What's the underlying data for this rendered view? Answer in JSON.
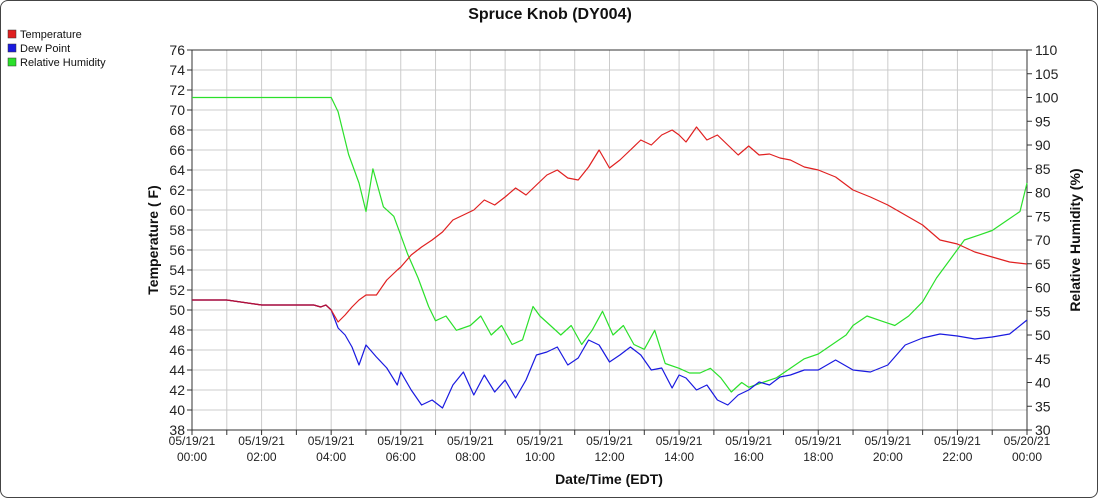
{
  "chart_data": {
    "type": "line",
    "title": "Spruce Knob (DY004)",
    "xlabel": "Date/Time (EDT)",
    "ylabel_left": "Temperature ( F)",
    "ylabel_right": "Relative Humidity (%)",
    "ylim_left": [
      38,
      76
    ],
    "ylim_right": [
      30,
      110
    ],
    "xlim_hours": [
      0,
      24
    ],
    "x_ticks": [
      {
        "date": "05/19/21",
        "time": "00:00"
      },
      {
        "date": "05/19/21",
        "time": "02:00"
      },
      {
        "date": "05/19/21",
        "time": "04:00"
      },
      {
        "date": "05/19/21",
        "time": "06:00"
      },
      {
        "date": "05/19/21",
        "time": "08:00"
      },
      {
        "date": "05/19/21",
        "time": "10:00"
      },
      {
        "date": "05/19/21",
        "time": "12:00"
      },
      {
        "date": "05/19/21",
        "time": "14:00"
      },
      {
        "date": "05/19/21",
        "time": "16:00"
      },
      {
        "date": "05/19/21",
        "time": "18:00"
      },
      {
        "date": "05/19/21",
        "time": "20:00"
      },
      {
        "date": "05/19/21",
        "time": "22:00"
      },
      {
        "date": "05/20/21",
        "time": "00:00"
      }
    ],
    "y_ticks_left": [
      38,
      40,
      42,
      44,
      46,
      48,
      50,
      52,
      54,
      56,
      58,
      60,
      62,
      64,
      66,
      68,
      70,
      72,
      74,
      76
    ],
    "y_ticks_right": [
      30,
      35,
      40,
      45,
      50,
      55,
      60,
      65,
      70,
      75,
      80,
      85,
      90,
      95,
      100,
      105,
      110
    ],
    "grid": true,
    "legend_position": "top-left",
    "colors": {
      "temperature": "#e02020",
      "dew_point": "#1a1ae0",
      "humidity": "#2be02b",
      "merged": "#b0103a",
      "grid": "#cccccc"
    },
    "series": [
      {
        "name": "Temperature",
        "axis": "left",
        "x": [
          0,
          1,
          2,
          3,
          3.5,
          3.7,
          3.85,
          4,
          4.2,
          4.4,
          4.6,
          4.8,
          5,
          5.3,
          5.6,
          5.9,
          6,
          6.3,
          6.6,
          6.9,
          7.2,
          7.5,
          7.8,
          8.1,
          8.4,
          8.7,
          9,
          9.3,
          9.6,
          9.9,
          10.2,
          10.5,
          10.8,
          11.1,
          11.4,
          11.7,
          12,
          12.3,
          12.6,
          12.9,
          13.2,
          13.5,
          13.8,
          14,
          14.2,
          14.5,
          14.8,
          15.1,
          15.4,
          15.7,
          16,
          16.3,
          16.6,
          16.9,
          17.2,
          17.6,
          18,
          18.5,
          19,
          19.5,
          20,
          20.5,
          21,
          21.5,
          22,
          22.5,
          23,
          23.5,
          24
        ],
        "values": [
          51,
          51,
          50.5,
          50.5,
          50.5,
          50.3,
          50.5,
          50,
          48.8,
          49.5,
          50.3,
          51,
          51.5,
          51.5,
          53,
          54,
          54.3,
          55.5,
          56.3,
          57,
          57.8,
          59,
          59.5,
          60,
          61,
          60.5,
          61.3,
          62.2,
          61.5,
          62.5,
          63.5,
          64,
          63.2,
          63,
          64.3,
          66,
          64.2,
          65,
          66,
          67,
          66.5,
          67.5,
          68,
          67.5,
          66.8,
          68.3,
          67,
          67.5,
          66.5,
          65.5,
          66.4,
          65.5,
          65.6,
          65.2,
          65,
          64.3,
          64,
          63.3,
          62,
          61.3,
          60.5,
          59.5,
          58.5,
          57,
          56.6,
          55.8,
          55.3,
          54.8,
          54.6
        ]
      },
      {
        "name": "Dew Point",
        "axis": "left",
        "x": [
          0,
          1,
          2,
          3,
          3.5,
          3.7,
          3.85,
          4,
          4.2,
          4.4,
          4.6,
          4.8,
          5,
          5.3,
          5.6,
          5.9,
          6,
          6.3,
          6.6,
          6.9,
          7.2,
          7.5,
          7.8,
          8.1,
          8.4,
          8.7,
          9,
          9.3,
          9.6,
          9.9,
          10.2,
          10.5,
          10.8,
          11.1,
          11.4,
          11.7,
          12,
          12.3,
          12.6,
          12.9,
          13.2,
          13.5,
          13.8,
          14,
          14.2,
          14.5,
          14.8,
          15.1,
          15.4,
          15.7,
          16,
          16.3,
          16.6,
          16.9,
          17.2,
          17.6,
          18,
          18.5,
          19,
          19.5,
          20,
          20.5,
          21,
          21.5,
          22,
          22.5,
          23,
          23.5,
          24
        ],
        "values": [
          51,
          51,
          50.5,
          50.5,
          50.5,
          50.3,
          50.5,
          50,
          48.2,
          47.5,
          46.3,
          44.5,
          46.5,
          45.3,
          44.2,
          42.5,
          43.8,
          42,
          40.5,
          41,
          40.2,
          42.5,
          43.8,
          41.5,
          43.5,
          41.8,
          43,
          41.2,
          43,
          45.5,
          45.8,
          46.3,
          44.5,
          45.2,
          47,
          46.5,
          44.8,
          45.5,
          46.3,
          45.5,
          44,
          44.2,
          42.2,
          43.5,
          43.2,
          42,
          42.5,
          41,
          40.5,
          41.5,
          42,
          42.8,
          42.5,
          43.3,
          43.5,
          44,
          44,
          45,
          44,
          43.8,
          44.5,
          46.5,
          47.2,
          47.6,
          47.4,
          47.1,
          47.3,
          47.6,
          49
        ]
      },
      {
        "name": "Relative Humidity",
        "axis": "right",
        "x": [
          0,
          1,
          2,
          3,
          4,
          4.2,
          4.5,
          4.8,
          5,
          5.2,
          5.5,
          5.8,
          6,
          6.2,
          6.5,
          6.8,
          7,
          7.3,
          7.6,
          8,
          8.3,
          8.6,
          8.9,
          9.2,
          9.5,
          9.8,
          10,
          10.3,
          10.6,
          10.9,
          11.2,
          11.5,
          11.8,
          12.1,
          12.4,
          12.7,
          13,
          13.3,
          13.6,
          14,
          14.3,
          14.6,
          14.9,
          15.2,
          15.5,
          15.8,
          16,
          16.4,
          16.8,
          17.2,
          17.6,
          18,
          18.4,
          18.8,
          19,
          19.4,
          19.8,
          20.2,
          20.6,
          21,
          21.4,
          21.8,
          22.2,
          22.6,
          23,
          23.4,
          23.8,
          24
        ],
        "values": [
          100,
          100,
          100,
          100,
          100,
          97,
          88,
          82,
          76,
          85,
          77,
          75,
          71,
          67,
          62,
          56,
          53,
          54,
          51,
          52,
          54,
          50,
          52,
          48,
          49,
          56,
          54,
          52,
          50,
          52,
          48,
          51,
          55,
          50,
          52,
          48,
          47,
          51,
          44,
          43,
          42,
          42,
          43,
          41,
          38,
          40,
          39,
          40,
          41,
          43,
          45,
          46,
          48,
          50,
          52,
          54,
          53,
          52,
          54,
          57,
          62,
          66,
          70,
          71,
          72,
          74,
          76,
          82
        ]
      }
    ]
  },
  "legend": {
    "temperature": "Temperature",
    "dew_point": "Dew Point",
    "humidity": "Relative Humidity"
  }
}
